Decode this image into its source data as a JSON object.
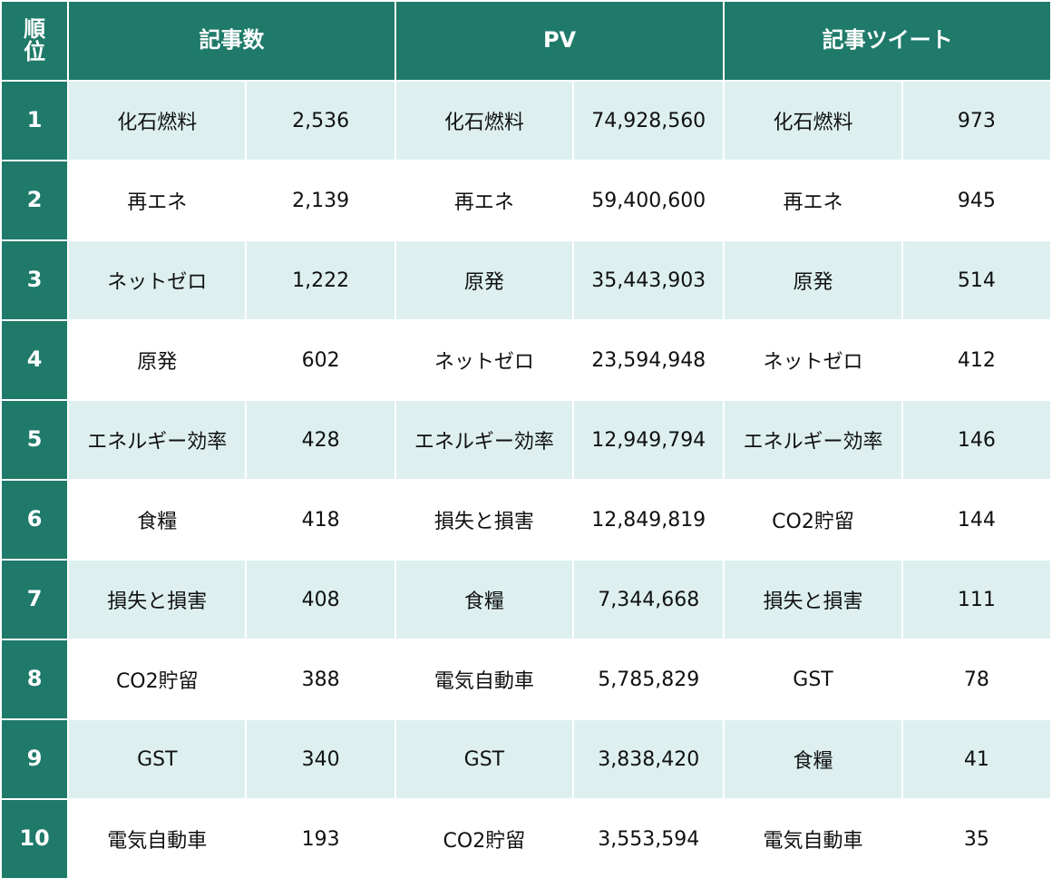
{
  "header": {
    "rank": [
      "順",
      "位"
    ],
    "groups": [
      "記事数",
      "PV",
      "記事ツイート"
    ]
  },
  "rows": [
    {
      "rank": "1",
      "articles_topic": "化石燃料",
      "articles_value": "2,536",
      "pv_topic": "化石燃料",
      "pv_value": "74,928,560",
      "tweets_topic": "化石燃料",
      "tweets_value": "973"
    },
    {
      "rank": "2",
      "articles_topic": "再エネ",
      "articles_value": "2,139",
      "pv_topic": "再エネ",
      "pv_value": "59,400,600",
      "tweets_topic": "再エネ",
      "tweets_value": "945"
    },
    {
      "rank": "3",
      "articles_topic": "ネットゼロ",
      "articles_value": "1,222",
      "pv_topic": "原発",
      "pv_value": "35,443,903",
      "tweets_topic": "原発",
      "tweets_value": "514"
    },
    {
      "rank": "4",
      "articles_topic": "原発",
      "articles_value": "602",
      "pv_topic": "ネットゼロ",
      "pv_value": "23,594,948",
      "tweets_topic": "ネットゼロ",
      "tweets_value": "412"
    },
    {
      "rank": "5",
      "articles_topic": "エネルギー効率",
      "articles_value": "428",
      "pv_topic": "エネルギー効率",
      "pv_value": "12,949,794",
      "tweets_topic": "エネルギー効率",
      "tweets_value": "146"
    },
    {
      "rank": "6",
      "articles_topic": "食糧",
      "articles_value": "418",
      "pv_topic": "損失と損害",
      "pv_value": "12,849,819",
      "tweets_topic": "CO2貯留",
      "tweets_value": "144"
    },
    {
      "rank": "7",
      "articles_topic": "損失と損害",
      "articles_value": "408",
      "pv_topic": "食糧",
      "pv_value": "7,344,668",
      "tweets_topic": "損失と損害",
      "tweets_value": "111"
    },
    {
      "rank": "8",
      "articles_topic": "CO2貯留",
      "articles_value": "388",
      "pv_topic": "電気自動車",
      "pv_value": "5,785,829",
      "tweets_topic": "GST",
      "tweets_value": "78"
    },
    {
      "rank": "9",
      "articles_topic": "GST",
      "articles_value": "340",
      "pv_topic": "GST",
      "pv_value": "3,838,420",
      "tweets_topic": "食糧",
      "tweets_value": "41"
    },
    {
      "rank": "10",
      "articles_topic": "電気自動車",
      "articles_value": "193",
      "pv_topic": "CO2貯留",
      "pv_value": "3,553,594",
      "tweets_topic": "電気自動車",
      "tweets_value": "35"
    }
  ],
  "colors": {
    "header_bg": "#1f7a6a",
    "header_text": "#ffffff",
    "row_alt_bg": "#ddf0ef",
    "row_bg": "#ffffff"
  }
}
